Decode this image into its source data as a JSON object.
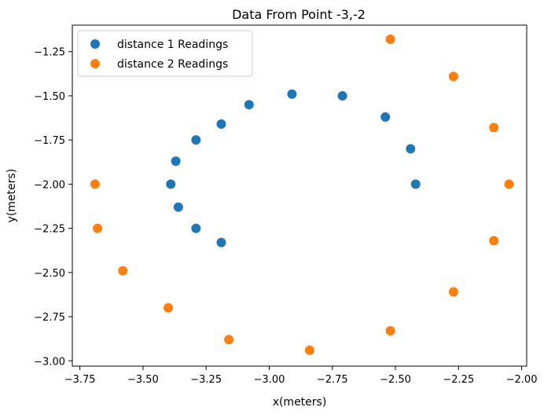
{
  "chart_data": {
    "type": "scatter",
    "title": "Data From Point -3,-2",
    "xlabel": "x(meters)",
    "ylabel": "y(meters)",
    "xlim": [
      -3.78,
      -1.98
    ],
    "ylim": [
      -3.03,
      -1.1
    ],
    "xticks": [
      -3.75,
      -3.5,
      -3.25,
      -3.0,
      -2.75,
      -2.5,
      -2.25,
      -2.0
    ],
    "xtick_labels": [
      "−3.75",
      "−3.50",
      "−3.25",
      "−3.00",
      "−2.75",
      "−2.50",
      "−2.25",
      "−2.00"
    ],
    "yticks": [
      -1.25,
      -1.5,
      -1.75,
      -2.0,
      -2.25,
      -2.5,
      -2.75,
      -3.0
    ],
    "ytick_labels": [
      "−1.25",
      "−1.50",
      "−1.75",
      "−2.00",
      "−2.25",
      "−2.50",
      "−2.75",
      "−3.00"
    ],
    "grid": false,
    "legend_position": "top-left",
    "series": [
      {
        "name": "distance 1 Readings",
        "color": "#1f77b4",
        "points": [
          [
            -3.39,
            -2.0
          ],
          [
            -3.36,
            -2.13
          ],
          [
            -3.37,
            -1.87
          ],
          [
            -3.29,
            -1.75
          ],
          [
            -3.29,
            -2.25
          ],
          [
            -3.19,
            -1.66
          ],
          [
            -3.19,
            -2.33
          ],
          [
            -3.08,
            -1.55
          ],
          [
            -2.91,
            -1.49
          ],
          [
            -2.71,
            -1.5
          ],
          [
            -2.54,
            -1.62
          ],
          [
            -2.44,
            -1.8
          ],
          [
            -2.42,
            -2.0
          ]
        ]
      },
      {
        "name": "distance 2 Readings",
        "color": "#ff7f0e",
        "points": [
          [
            -3.69,
            -2.0
          ],
          [
            -3.68,
            -2.25
          ],
          [
            -3.58,
            -2.49
          ],
          [
            -3.4,
            -2.7
          ],
          [
            -3.16,
            -2.88
          ],
          [
            -2.84,
            -2.94
          ],
          [
            -2.52,
            -2.83
          ],
          [
            -2.27,
            -2.61
          ],
          [
            -2.11,
            -2.32
          ],
          [
            -2.05,
            -2.0
          ],
          [
            -2.11,
            -1.68
          ],
          [
            -2.27,
            -1.39
          ],
          [
            -2.52,
            -1.18
          ]
        ]
      }
    ]
  }
}
